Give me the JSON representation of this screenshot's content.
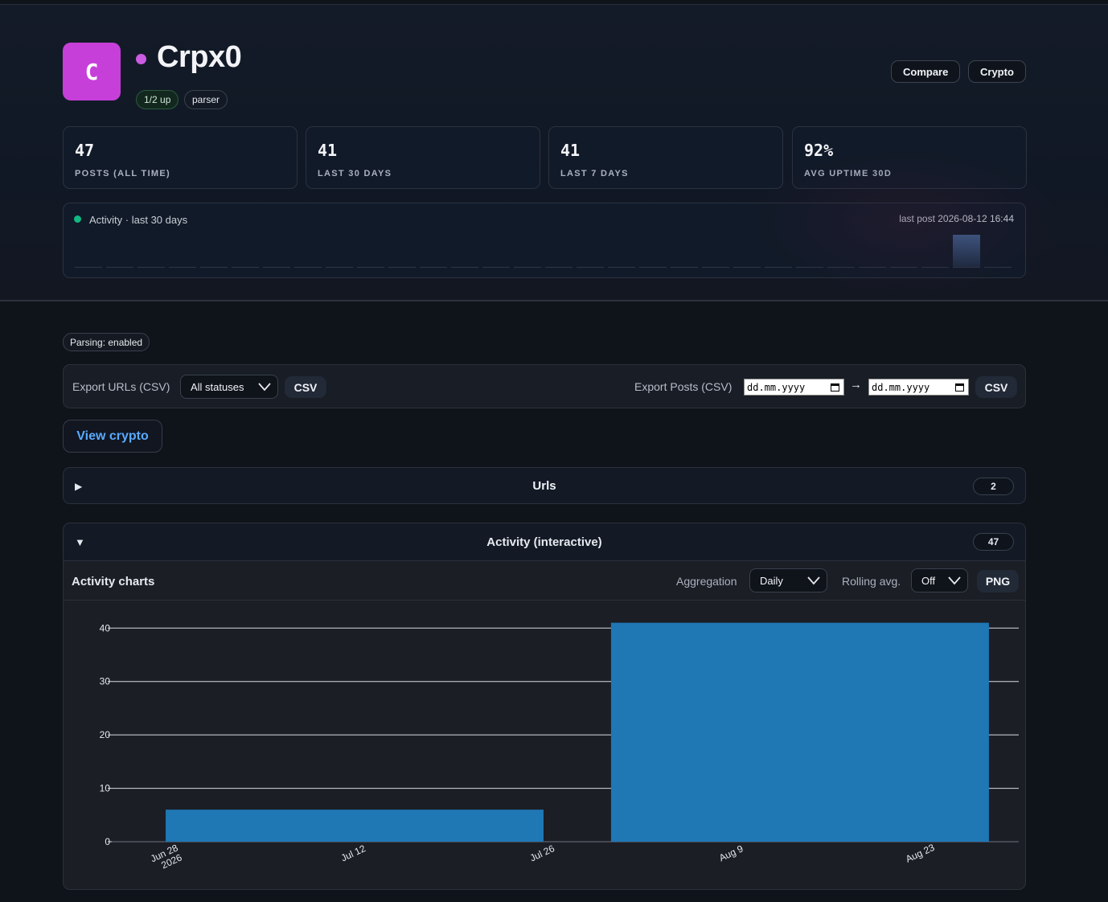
{
  "header": {
    "avatar_letter": "C",
    "avatar_color": "#c63fd9",
    "status_color": "#c95ce0",
    "name": "Crpx0",
    "chips": {
      "uptime": "1/2 up",
      "type": "parser"
    },
    "buttons": {
      "compare": "Compare",
      "crypto": "Crypto"
    }
  },
  "stats": [
    {
      "value": "47",
      "label": "POSTS (ALL TIME)"
    },
    {
      "value": "41",
      "label": "LAST 30 DAYS"
    },
    {
      "value": "41",
      "label": "LAST 7 DAYS"
    },
    {
      "value": "92%",
      "label": "AVG UPTIME 30D"
    }
  ],
  "activity": {
    "title": "Activity · last 30 days",
    "last_post": "last post 2026-08-12 16:44",
    "indicator_color": "#10b981",
    "days": [
      0,
      0,
      0,
      0,
      0,
      0,
      0,
      0,
      0,
      0,
      0,
      0,
      0,
      0,
      0,
      0,
      0,
      0,
      0,
      0,
      0,
      0,
      0,
      0,
      0,
      0,
      0,
      0,
      41,
      0
    ]
  },
  "parsing_badge": "Parsing: enabled",
  "export": {
    "urls_label": "Export URLs (CSV)",
    "status_select": "All statuses",
    "csv_label": "CSV",
    "posts_label": "Export Posts (CSV)",
    "date_placeholder": "dd.mm.yyyy",
    "arrow": "→"
  },
  "view_crypto": "View crypto",
  "panels": {
    "urls": {
      "toggle": "▶",
      "title": "Urls",
      "count": "2"
    },
    "activity": {
      "toggle": "▼",
      "title": "Activity (interactive)",
      "count": "47"
    }
  },
  "chart_toolbar": {
    "heading": "Activity charts",
    "aggregation_label": "Aggregation",
    "aggregation_value": "Daily",
    "rolling_label": "Rolling avg.",
    "rolling_value": "Off",
    "png_label": "PNG"
  },
  "chart_data": {
    "type": "bar",
    "bar_color": "#1f77b4",
    "ylim": [
      0,
      42
    ],
    "yticks": [
      0,
      10,
      20,
      30,
      40
    ],
    "grid": true,
    "xticks": [
      {
        "date": "2026-06-28",
        "label": "Jun 28",
        "sublabel": "2026"
      },
      {
        "date": "2026-07-12",
        "label": "Jul 12",
        "sublabel": ""
      },
      {
        "date": "2026-07-26",
        "label": "Jul 26",
        "sublabel": ""
      },
      {
        "date": "2026-08-09",
        "label": "Aug 9",
        "sublabel": ""
      },
      {
        "date": "2026-08-23",
        "label": "Aug 23",
        "sublabel": ""
      }
    ],
    "bars": [
      {
        "start": "2026-06-28",
        "end": "2026-07-26",
        "value": 6
      },
      {
        "start": "2026-07-31",
        "end": "2026-08-28",
        "value": 41
      }
    ]
  }
}
